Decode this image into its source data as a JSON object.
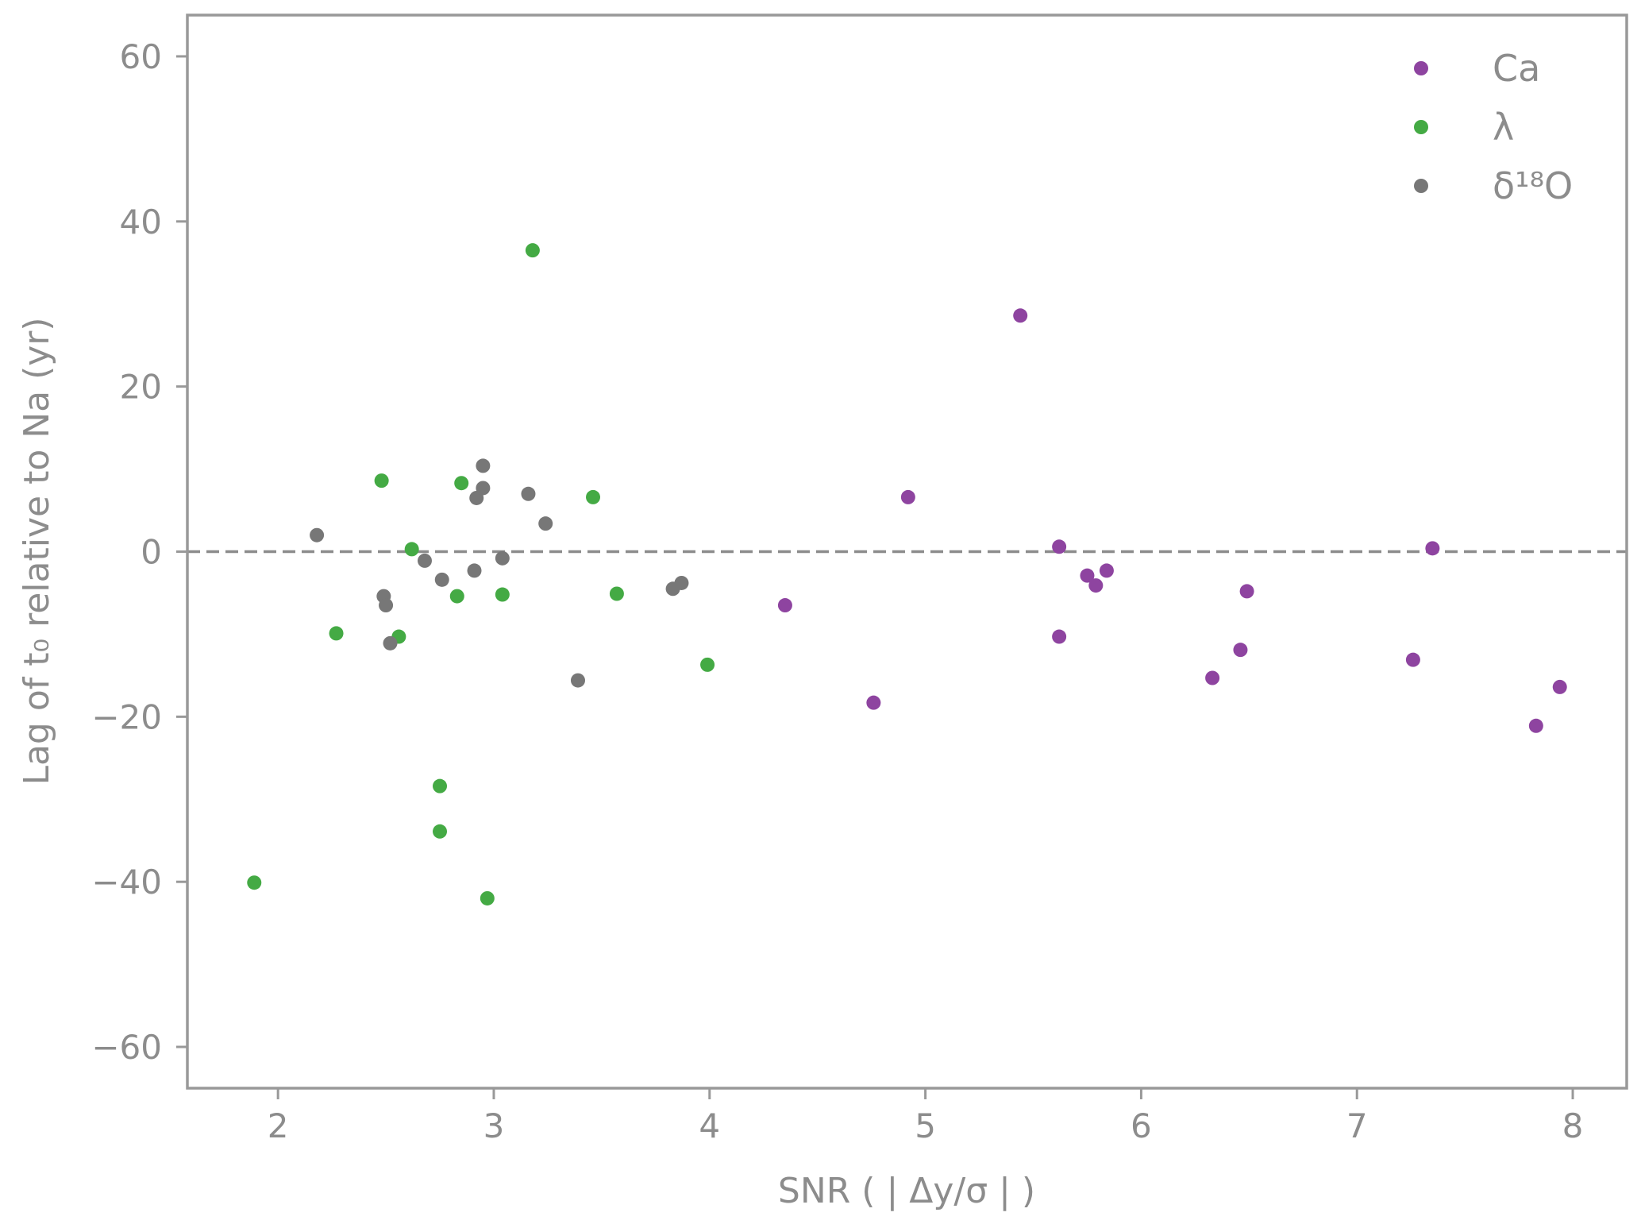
{
  "chart_data": {
    "type": "scatter",
    "title": "",
    "xlabel": "SNR ( | Δy/σ | )",
    "ylabel": "Lag of t₀ relative to Na (yr)",
    "xlim": [
      1.58,
      8.25
    ],
    "ylim": [
      -65,
      65
    ],
    "x_ticks": [
      2,
      3,
      4,
      5,
      6,
      7,
      8
    ],
    "x_tick_labels": [
      "2",
      "3",
      "4",
      "5",
      "6",
      "7",
      "8"
    ],
    "y_ticks": [
      60,
      40,
      20,
      0,
      -20,
      -40,
      -60
    ],
    "y_tick_labels": [
      "60",
      "40",
      "20",
      "0",
      "−20",
      "−40",
      "−60"
    ],
    "grid": false,
    "reference_line": {
      "y": 0,
      "style": "dashed",
      "color": "#8c8c8c"
    },
    "legend_position": "top-right",
    "series": [
      {
        "name": "Ca",
        "color": "#8e44a0",
        "points": [
          [
            4.35,
            -6.5
          ],
          [
            4.76,
            -18.3
          ],
          [
            4.92,
            6.6
          ],
          [
            5.44,
            28.6
          ],
          [
            5.62,
            0.6
          ],
          [
            5.62,
            -10.3
          ],
          [
            5.75,
            -2.9
          ],
          [
            5.79,
            -4.1
          ],
          [
            5.84,
            -2.3
          ],
          [
            6.33,
            -15.3
          ],
          [
            6.46,
            -11.9
          ],
          [
            6.49,
            -4.8
          ],
          [
            7.26,
            -13.1
          ],
          [
            7.35,
            0.4
          ],
          [
            7.83,
            -21.1
          ],
          [
            7.94,
            -16.4
          ]
        ]
      },
      {
        "name": "λ",
        "color": "#44aa44",
        "points": [
          [
            1.89,
            -40.1
          ],
          [
            2.27,
            -9.9
          ],
          [
            2.48,
            8.6
          ],
          [
            2.56,
            -10.3
          ],
          [
            2.62,
            0.3
          ],
          [
            2.75,
            -28.4
          ],
          [
            2.75,
            -33.9
          ],
          [
            2.83,
            -5.4
          ],
          [
            2.85,
            8.3
          ],
          [
            2.97,
            -42.0
          ],
          [
            3.04,
            -5.2
          ],
          [
            3.18,
            36.5
          ],
          [
            3.46,
            6.6
          ],
          [
            3.57,
            -5.1
          ],
          [
            3.99,
            -13.7
          ]
        ]
      },
      {
        "name": "δ¹⁸O",
        "color": "#777777",
        "points": [
          [
            2.18,
            2.0
          ],
          [
            2.49,
            -5.4
          ],
          [
            2.5,
            -6.5
          ],
          [
            2.52,
            -11.1
          ],
          [
            2.68,
            -1.1
          ],
          [
            2.76,
            -3.4
          ],
          [
            2.91,
            -2.3
          ],
          [
            2.92,
            6.5
          ],
          [
            2.95,
            10.4
          ],
          [
            2.95,
            7.7
          ],
          [
            3.04,
            -0.8
          ],
          [
            3.16,
            7.0
          ],
          [
            3.24,
            3.4
          ],
          [
            3.39,
            -15.6
          ],
          [
            3.83,
            -4.5
          ],
          [
            3.87,
            -3.8
          ]
        ]
      }
    ]
  }
}
